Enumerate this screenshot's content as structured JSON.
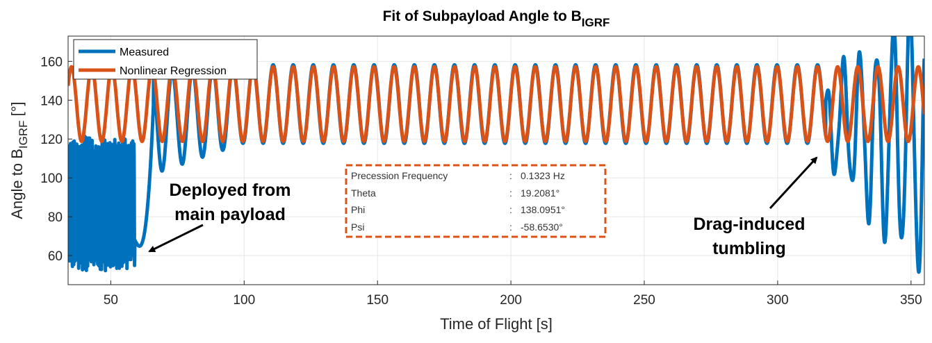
{
  "chart_data": {
    "type": "line",
    "title": "Fit of Subpayload Angle to B",
    "title_subscript": "IGRF",
    "xlabel": "Time of Flight [s]",
    "ylabel": "Angle to B",
    "ylabel_subscript": "IGRF",
    "ylabel_unit": " [°]",
    "xlim": [
      34,
      355
    ],
    "ylim": [
      45,
      173
    ],
    "xticks": [
      50,
      100,
      150,
      200,
      250,
      300,
      350
    ],
    "yticks": [
      60,
      80,
      100,
      120,
      140,
      160
    ],
    "grid": true,
    "legend_position": "top-left",
    "series": [
      {
        "name": "Measured",
        "color": "#0072BD",
        "description_segments": [
          {
            "t_start": 34,
            "t_end": 59,
            "behavior": "rapid oscillation between ~52 and ~122"
          },
          {
            "t_start": 59,
            "t_end": 67,
            "behavior": "dip near 62-70, then rise"
          },
          {
            "t_start": 67,
            "t_end": 318,
            "behavior": "precession oscillation ~118-158, period ~7.56 s"
          },
          {
            "t_start": 318,
            "t_end": 355,
            "behavior": "tumbling, large amplitude 50-173"
          }
        ]
      },
      {
        "name": "Nonlinear Regression",
        "color": "#D95319",
        "model": {
          "mean": 138,
          "amplitude": 19.2,
          "frequency_hz": 0.1323
        },
        "range": [
          34,
          355
        ]
      }
    ],
    "annotations": [
      {
        "lines": [
          "Deployed from",
          "main payload"
        ],
        "arrow_to": {
          "x": 61,
          "y": 61
        }
      },
      {
        "lines": [
          "Drag-induced",
          "tumbling"
        ],
        "arrow_to": {
          "x": 317,
          "y": 114
        }
      }
    ],
    "info_box": {
      "rows": [
        {
          "label": "Precession Frequency",
          "value": "0.1323 Hz"
        },
        {
          "label": "Theta",
          "value": "19.2081°"
        },
        {
          "label": "Phi",
          "value": "138.0951°"
        },
        {
          "label": "Psi",
          "value": "-58.6530°"
        }
      ],
      "border_color": "#D95319"
    }
  }
}
